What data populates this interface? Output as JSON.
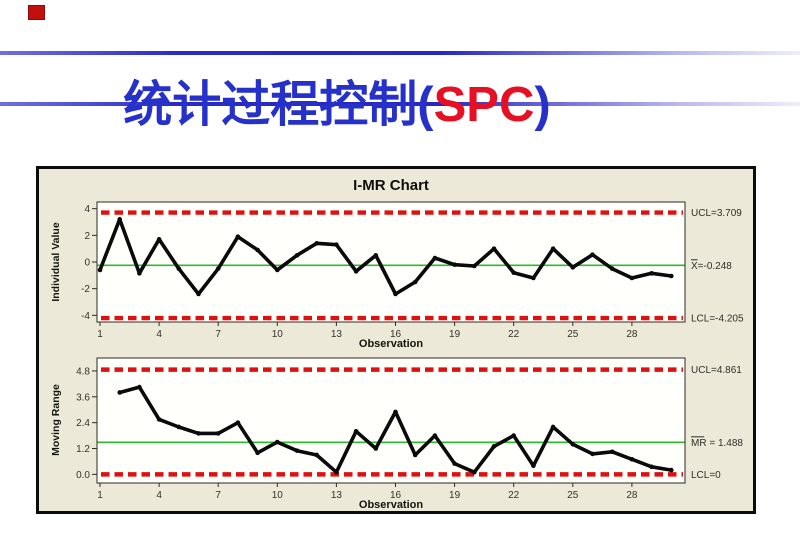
{
  "slide": {
    "title": {
      "prefix": "统计过程控制(",
      "highlight": "SPC",
      "suffix": ")",
      "color_main": "#2531c9",
      "color_highlight": "#e60f23"
    },
    "corner_marker_color": "#c3100f",
    "accent_line_color": "#2a2ac8"
  },
  "chart_data": {
    "type": "line",
    "title": "I-MR Chart",
    "xlabel": "Observation",
    "grid": false,
    "legend": "none",
    "frame_bg": "#ece9d8",
    "plot_bg": "#fffffb",
    "line_color": "#0a0a0a",
    "control_line_color": "#de1010",
    "center_line_color": "#2db92d",
    "x_ticks": [
      1,
      4,
      7,
      10,
      13,
      16,
      19,
      22,
      25,
      28
    ],
    "xlim": [
      0.85,
      30.7
    ],
    "panels": [
      {
        "name": "individuals",
        "ylabel": "Individual Value",
        "y_ticks": [
          "4",
          "2",
          "0",
          "-2",
          "-4"
        ],
        "y_tick_values": [
          4,
          2,
          0,
          -2,
          -4
        ],
        "ylim": [
          -4.5,
          4.5
        ],
        "ucl_value": 3.709,
        "ucl_label": "UCL=3.709",
        "center_value": -0.248,
        "center_label": "X=-0.248",
        "center_label_overline_chars": 1,
        "lcl_value": -4.205,
        "lcl_label": "LCL=-4.205",
        "x": [
          1,
          2,
          3,
          4,
          5,
          6,
          7,
          8,
          9,
          10,
          11,
          12,
          13,
          14,
          15,
          16,
          17,
          18,
          19,
          20,
          21,
          22,
          23,
          24,
          25,
          26,
          27,
          28,
          29,
          30
        ],
        "values": [
          -0.6,
          3.2,
          -0.85,
          1.7,
          -0.5,
          -2.4,
          -0.5,
          1.9,
          0.9,
          -0.6,
          0.5,
          1.4,
          1.3,
          -0.7,
          0.5,
          -2.4,
          -1.5,
          0.3,
          -0.2,
          -0.3,
          1.0,
          -0.8,
          -1.2,
          1.0,
          -0.4,
          0.55,
          -0.5,
          -1.2,
          -0.85,
          -1.05
        ]
      },
      {
        "name": "moving-range",
        "ylabel": "Moving Range",
        "y_ticks": [
          "4.8",
          "3.6",
          "2.4",
          "1.2",
          "0.0"
        ],
        "y_tick_values": [
          4.8,
          3.6,
          2.4,
          1.2,
          0.0
        ],
        "ylim": [
          -0.4,
          5.4
        ],
        "ucl_value": 4.861,
        "ucl_label": "UCL=4.861",
        "center_value": 1.488,
        "center_label": "MR = 1.488",
        "center_label_overline_chars": 2,
        "lcl_value": 0,
        "lcl_label": "LCL=0",
        "x": [
          2,
          3,
          4,
          5,
          6,
          7,
          8,
          9,
          10,
          11,
          12,
          13,
          14,
          15,
          16,
          17,
          18,
          19,
          20,
          21,
          22,
          23,
          24,
          25,
          26,
          27,
          28,
          29,
          30
        ],
        "values": [
          3.8,
          4.05,
          2.55,
          2.2,
          1.9,
          1.9,
          2.4,
          1.0,
          1.5,
          1.1,
          0.9,
          0.1,
          2.0,
          1.2,
          2.9,
          0.9,
          1.8,
          0.5,
          0.1,
          1.3,
          1.8,
          0.4,
          2.2,
          1.4,
          0.95,
          1.05,
          0.7,
          0.35,
          0.2
        ]
      }
    ]
  }
}
